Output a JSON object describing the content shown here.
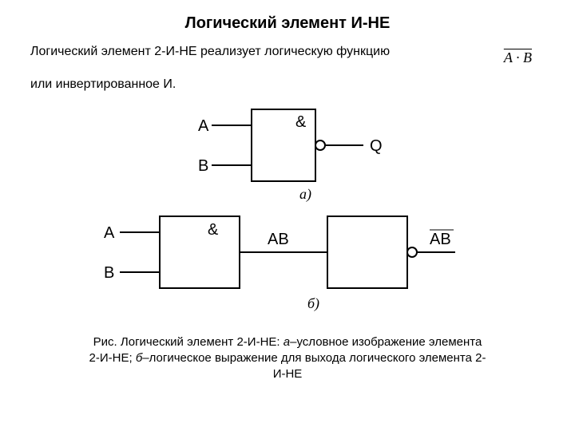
{
  "title": "Логический элемент И-НЕ",
  "para1": "Логический элемент 2-И-НЕ реализует логическую функцию",
  "para2": "или инвертированное И.",
  "formula_html": "<span class='overline'>A · B</span>",
  "diagram_a": {
    "in1": "A",
    "in2": "B",
    "gate": "&",
    "out": "Q",
    "label": "а)"
  },
  "diagram_b": {
    "in1": "A",
    "in2": "B",
    "gate1": "&",
    "mid": "AB",
    "out_html": "<span class='overline'>AB</span>",
    "label": "б)"
  },
  "caption_parts": {
    "p1": "Рис. Логический элемент 2-И-НЕ: ",
    "i1": "а",
    "p2": "–условное изображение элемента 2-И-НЕ; ",
    "i2": "б",
    "p3": "–логическое выражение для выхода логического элемента 2-И-НЕ"
  },
  "style": {
    "stroke": "#000000",
    "stroke_width": 2,
    "font_family_diagram": "Arial, sans-serif",
    "font_family_label": "Times New Roman, serif",
    "label_fontsize": 20,
    "italic_label_fontsize": 18,
    "bubble_radius": 6
  }
}
